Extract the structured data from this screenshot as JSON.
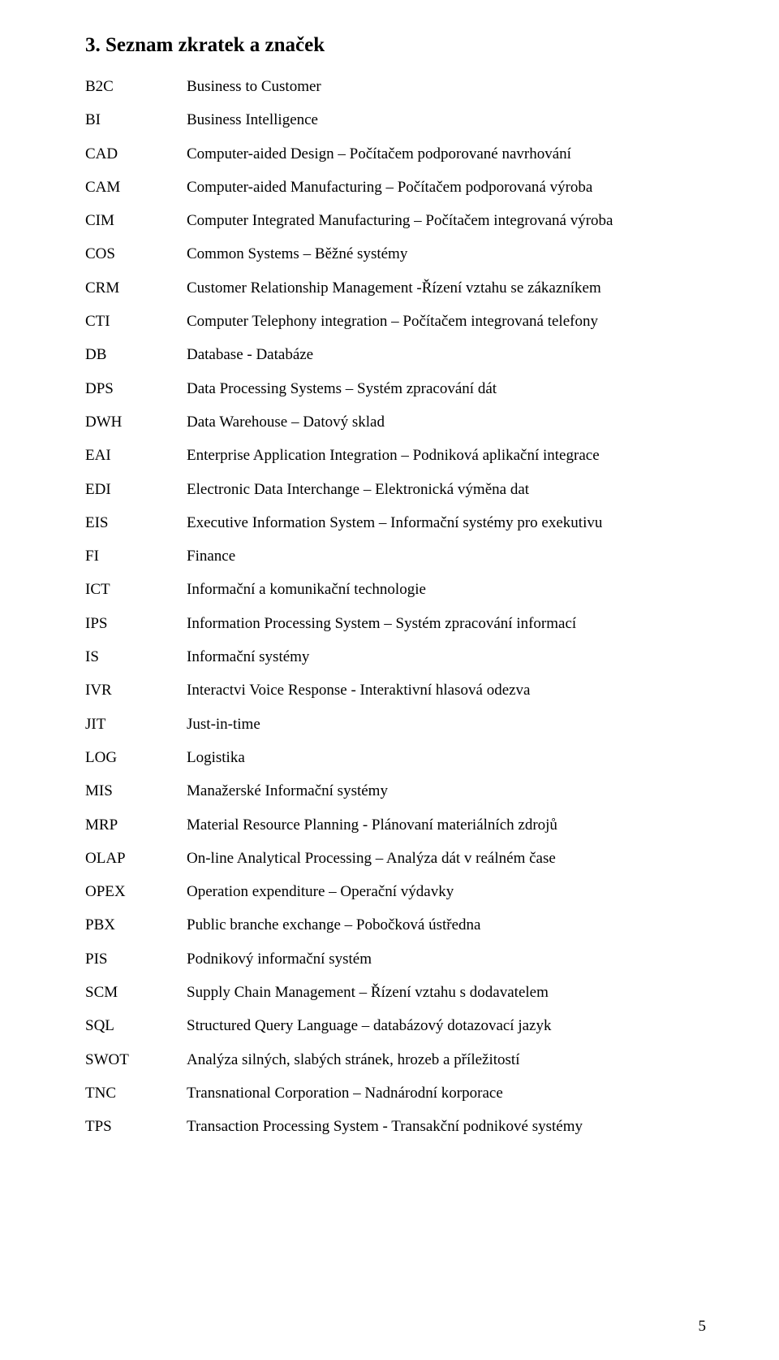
{
  "heading": "3.  Seznam zkratek a značek",
  "page_number": "5",
  "text_color": "#000000",
  "background_color": "#ffffff",
  "font_family": "Times New Roman",
  "entries": [
    {
      "abbr": "B2C",
      "def": "Business to Customer"
    },
    {
      "abbr": "BI",
      "def": "Business Intelligence"
    },
    {
      "abbr": "CAD",
      "def": "Computer-aided Design – Počítačem podporované navrhování"
    },
    {
      "abbr": "CAM",
      "def": "Computer-aided Manufacturing – Počítačem podporovaná výroba"
    },
    {
      "abbr": "CIM",
      "def": "Computer Integrated Manufacturing – Počítačem integrovaná výroba"
    },
    {
      "abbr": "COS",
      "def": "Common Systems – Běžné systémy"
    },
    {
      "abbr": "CRM",
      "def": "Customer Relationship Management -Řízení vztahu se zákazníkem"
    },
    {
      "abbr": "CTI",
      "def": "Computer Telephony integration – Počítačem integrovaná telefony"
    },
    {
      "abbr": "DB",
      "def": "Database - Databáze"
    },
    {
      "abbr": "DPS",
      "def": "Data Processing Systems – Systém zpracování dát"
    },
    {
      "abbr": "DWH",
      "def": "Data Warehouse – Datový sklad"
    },
    {
      "abbr": "EAI",
      "def": "Enterprise Application Integration – Podniková aplikační integrace"
    },
    {
      "abbr": "EDI",
      "def": "Electronic Data Interchange – Elektronická výměna dat"
    },
    {
      "abbr": "EIS",
      "def": "Executive Information System – Informační systémy pro exekutivu"
    },
    {
      "abbr": "FI",
      "def": "Finance"
    },
    {
      "abbr": "ICT",
      "def": "Informační a komunikační technologie"
    },
    {
      "abbr": "IPS",
      "def": "Information Processing System – Systém zpracování informací"
    },
    {
      "abbr": "IS",
      "def": "Informační systémy"
    },
    {
      "abbr": "IVR",
      "def": "Interactvi Voice Response - Interaktivní hlasová odezva"
    },
    {
      "abbr": "JIT",
      "def": "Just-in-time"
    },
    {
      "abbr": "LOG",
      "def": "Logistika"
    },
    {
      "abbr": "MIS",
      "def": "Manažerské Informační systémy"
    },
    {
      "abbr": "MRP",
      "def": "Material Resource Planning  - Plánovaní materiálních zdrojů"
    },
    {
      "abbr": "OLAP",
      "def": "On-line Analytical Processing – Analýza dát v reálném čase"
    },
    {
      "abbr": "OPEX",
      "def": "Operation expenditure – Operační výdavky"
    },
    {
      "abbr": "PBX",
      "def": "Public branche exchange – Pobočková ústředna"
    },
    {
      "abbr": "PIS",
      "def": "Podnikový informační systém"
    },
    {
      "abbr": "SCM",
      "def": "Supply Chain Management – Řízení vztahu s dodavatelem"
    },
    {
      "abbr": "SQL",
      "def": "Structured Query Language – databázový dotazovací jazyk"
    },
    {
      "abbr": "SWOT",
      "def": "Analýza silných, slabých stránek, hrozeb a příležitostí"
    },
    {
      "abbr": "TNC",
      "def": "Transnational Corporation – Nadnárodní korporace"
    },
    {
      "abbr": "TPS",
      "def": "Transaction Processing System - Transakční podnikové systémy"
    }
  ]
}
